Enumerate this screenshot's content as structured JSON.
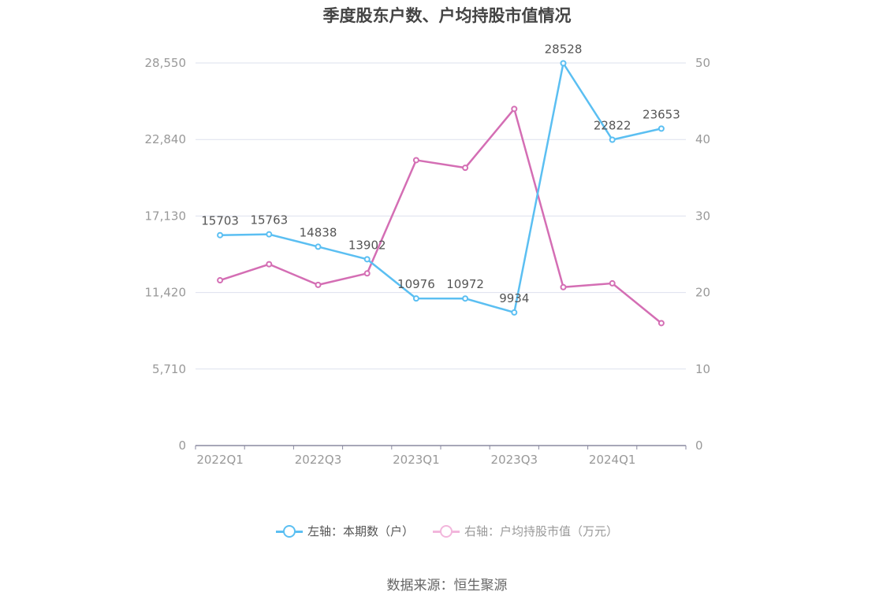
{
  "title": "季度股东户数、户均持股市值情况",
  "source": "数据来源：恒生聚源",
  "colors": {
    "left_series": "#5bbff2",
    "right_series": "#d46eb4",
    "grid": "#dde1ee",
    "axis": "#8a8aa0"
  },
  "legend": [
    {
      "label": "左轴：本期数（户）",
      "color": "#5bbff2",
      "text_color": "#555555"
    },
    {
      "label": "右轴：户均持股市值（万元）",
      "color": "#f2b6dc",
      "text_color": "#999999"
    }
  ],
  "chart_data": {
    "type": "line",
    "title": "季度股东户数、户均持股市值情况",
    "categories": [
      "2022Q1",
      "2022Q2",
      "2022Q3",
      "2022Q4",
      "2023Q1",
      "2023Q2",
      "2023Q3",
      "2023Q4",
      "2024Q1",
      "2024Q2"
    ],
    "x_tick_labels": [
      "2022Q1",
      "2022Q3",
      "2023Q1",
      "2023Q3",
      "2024Q1"
    ],
    "left_axis": {
      "ylim": [
        0,
        28550
      ],
      "ticks": [
        "0",
        "5,710",
        "11,420",
        "17,130",
        "22,840",
        "28,550"
      ]
    },
    "right_axis": {
      "ylim": [
        0,
        50
      ],
      "ticks": [
        "0",
        "10",
        "20",
        "30",
        "40",
        "50"
      ]
    },
    "grid": true,
    "legend_position": "bottom",
    "series": [
      {
        "name": "左轴：本期数（户）",
        "axis": "left",
        "values": [
          15703,
          15763,
          14838,
          13902,
          10976,
          10972,
          9934,
          28528,
          22822,
          23653
        ],
        "labels": [
          "15703",
          "15763",
          "14838",
          "13902",
          "10976",
          "10972",
          "9934",
          "28528",
          "22822",
          "23653"
        ]
      },
      {
        "name": "右轴：户均持股市值（万元）",
        "axis": "right",
        "values": [
          21.6,
          23.7,
          21.0,
          22.5,
          37.3,
          36.3,
          44.0,
          20.7,
          21.2,
          16.0
        ]
      }
    ]
  }
}
